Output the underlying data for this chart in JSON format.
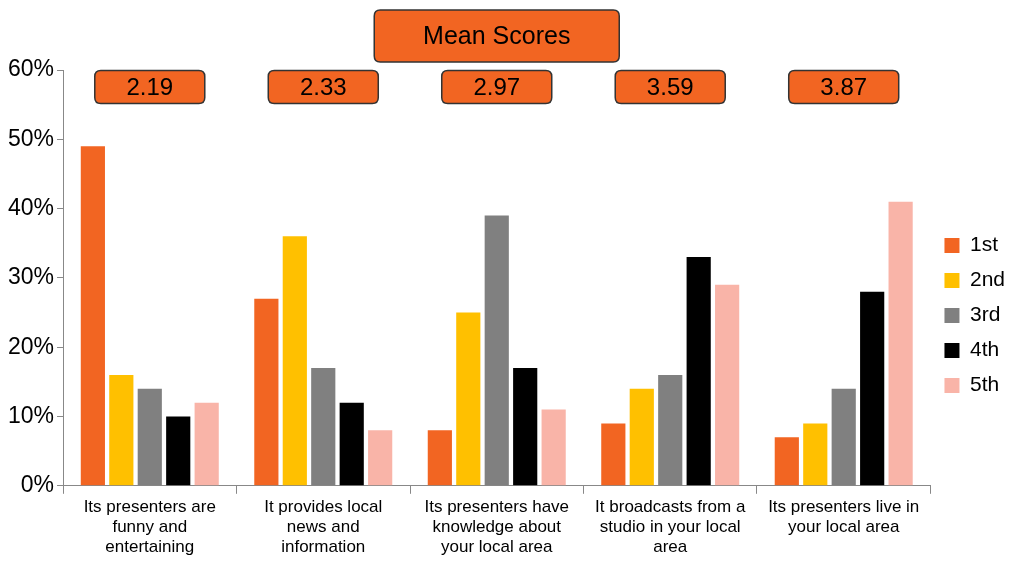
{
  "chart_data": {
    "type": "bar",
    "categories": [
      "Its presenters are funny and entertaining",
      "It provides local news and information",
      "Its presenters have knowledge about your local area",
      "It broadcasts from a studio in your local area",
      "Its presenters live in your local area"
    ],
    "series": [
      {
        "name": "1st",
        "color": "#f26522",
        "values": [
          49,
          27,
          8,
          9,
          7
        ]
      },
      {
        "name": "2nd",
        "color": "#ffc000",
        "values": [
          16,
          36,
          25,
          14,
          9
        ]
      },
      {
        "name": "3rd",
        "color": "#808080",
        "values": [
          14,
          17,
          39,
          16,
          14
        ]
      },
      {
        "name": "4th",
        "color": "#000000",
        "values": [
          10,
          12,
          17,
          33,
          28
        ]
      },
      {
        "name": "5th",
        "color": "#f9b4a8",
        "values": [
          12,
          8,
          11,
          29,
          41
        ]
      }
    ],
    "ylim": [
      0,
      60
    ],
    "yticks": [
      {
        "value": 0,
        "label": "0%"
      },
      {
        "value": 10,
        "label": "10%"
      },
      {
        "value": 20,
        "label": "20%"
      },
      {
        "value": 30,
        "label": "30%"
      },
      {
        "value": 40,
        "label": "40%"
      },
      {
        "value": 50,
        "label": "50%"
      },
      {
        "value": 60,
        "label": "60%"
      }
    ],
    "grid": false,
    "legend": "right",
    "annotations": [
      "Mean Scores",
      "2.19",
      "2.33",
      "2.97",
      "3.59",
      "3.87"
    ]
  }
}
